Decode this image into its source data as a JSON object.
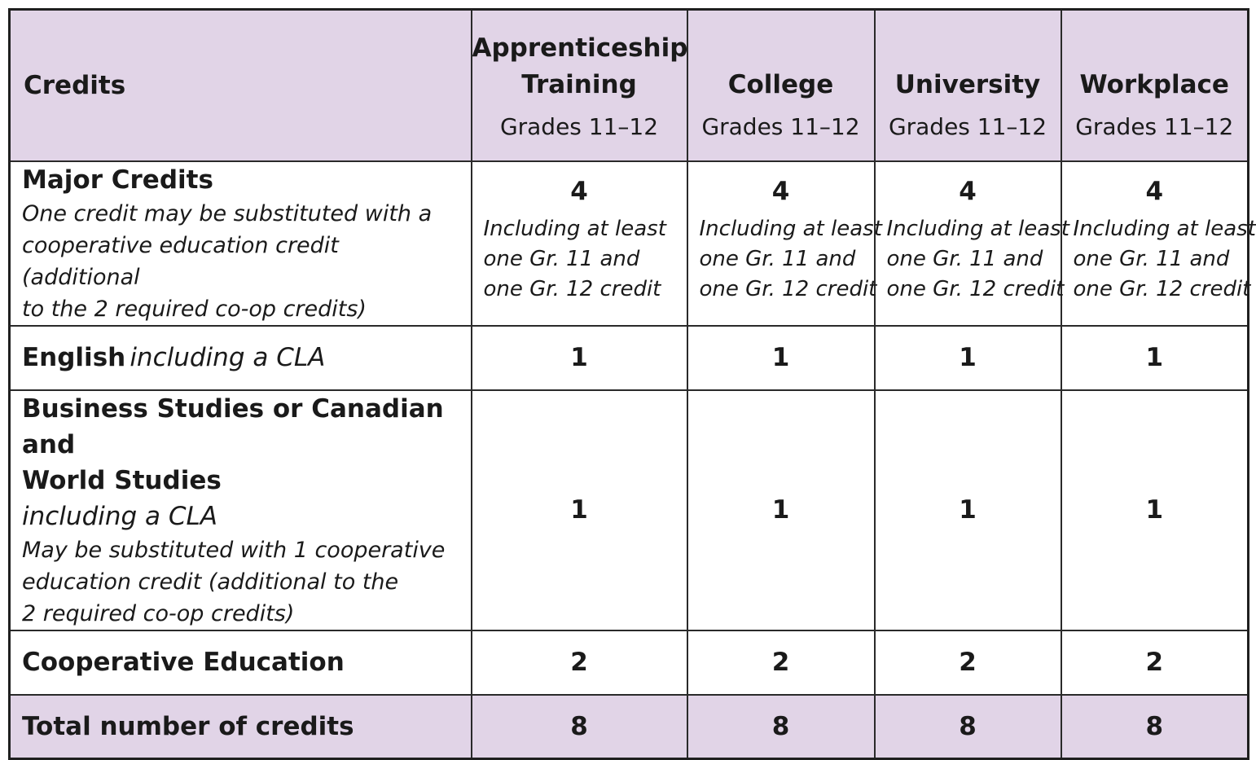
{
  "header": {
    "credits_label": "Credits",
    "columns": [
      {
        "title_line1": "Apprenticeship",
        "title_line2": "Training",
        "grades": "Grades 11–12"
      },
      {
        "title_line1": "College",
        "title_line2": "",
        "grades": "Grades 11–12"
      },
      {
        "title_line1": "University",
        "title_line2": "",
        "grades": "Grades 11–12"
      },
      {
        "title_line1": "Workplace",
        "title_line2": "",
        "grades": "Grades 11–12"
      }
    ]
  },
  "rows": {
    "major": {
      "title": "Major Credits",
      "note_line1": "One credit may be substituted with a",
      "note_line2": "cooperative education credit (additional",
      "note_line3": "to the 2 required co-op credits)",
      "values": [
        "4",
        "4",
        "4",
        "4"
      ],
      "value_note_line1": "Including at least",
      "value_note_line2": "one Gr. 11 and",
      "value_note_line3": "one Gr. 12 credit"
    },
    "english": {
      "title": "English",
      "title_italic": "including a CLA",
      "values": [
        "1",
        "1",
        "1",
        "1"
      ]
    },
    "business": {
      "title_line1": "Business Studies or Canadian and",
      "title_line2": "World Studies",
      "subtitle": "including a CLA",
      "note_line1": "May be substituted with 1 cooperative",
      "note_line2": "education credit (additional to the",
      "note_line3": "2 required co-op credits)",
      "values": [
        "1",
        "1",
        "1",
        "1"
      ]
    },
    "coop": {
      "title": "Cooperative Education",
      "values": [
        "2",
        "2",
        "2",
        "2"
      ]
    },
    "total": {
      "title": "Total number of credits",
      "values": [
        "8",
        "8",
        "8",
        "8"
      ]
    }
  },
  "colors": {
    "header_shade": "#e1d4e7",
    "border": "#2a2a2a"
  }
}
